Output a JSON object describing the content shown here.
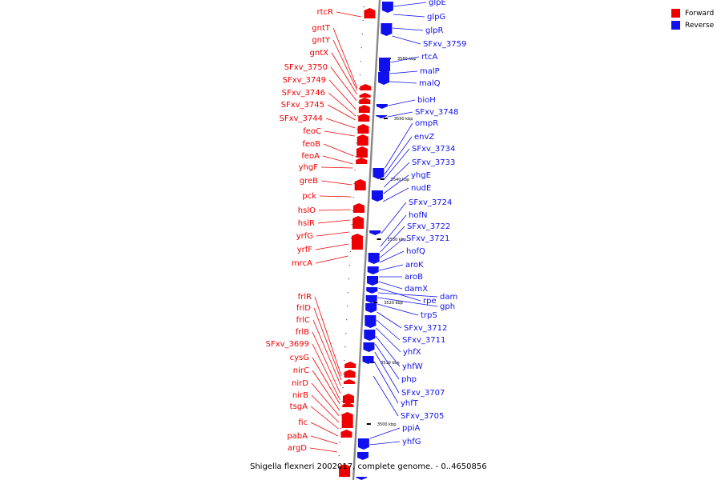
{
  "caption": "Shigella flexneri 2002017, complete genome. - 0..4650856",
  "legend": [
    {
      "label": "Forward",
      "color": "#ee0000"
    },
    {
      "label": "Reverse",
      "color": "#1010ee"
    }
  ],
  "colors": {
    "forward": "#ee0000",
    "reverse": "#1010ee",
    "axis": "#888888"
  },
  "axis_ticks": [
    "3560 kbp",
    "3550 kbp",
    "3540 kbp",
    "3530 kbp",
    "3520 kbp",
    "3510 kbp",
    "3500 kbp"
  ],
  "forward_genes": [
    "rtcR",
    "gntT",
    "gntY",
    "gntX",
    "SFxv_3750",
    "SFxv_3749",
    "SFxv_3746",
    "SFxv_3745",
    "SFxv_3744",
    "feoC",
    "feoB",
    "feoA",
    "yhgF",
    "greB",
    "pck",
    "hslO",
    "hslR",
    "yrfG",
    "yrfF",
    "mrcA",
    "frlR",
    "frlD",
    "frlC",
    "frlB",
    "SFxv_3699",
    "cysG",
    "nirC",
    "nirD",
    "nirB",
    "tsgA",
    "fic",
    "pabA",
    "argD"
  ],
  "reverse_genes": [
    "glpE",
    "glpG",
    "glpR",
    "SFxv_3759",
    "rtcA",
    "malP",
    "malQ",
    "bioH",
    "SFxv_3748",
    "ompR",
    "envZ",
    "SFxv_3734",
    "SFxv_3733",
    "yhgE",
    "nudE",
    "SFxv_3724",
    "hofN",
    "SFxv_3722",
    "SFxv_3721",
    "hofQ",
    "aroK",
    "aroB",
    "damX",
    "rpe",
    "dam",
    "gph",
    "trpS",
    "SFxv_3712",
    "SFxv_3711",
    "yhfX",
    "yhfW",
    "php",
    "SFxv_3707",
    "yhfT",
    "SFxv_3705",
    "ppiA",
    "yhfG"
  ]
}
